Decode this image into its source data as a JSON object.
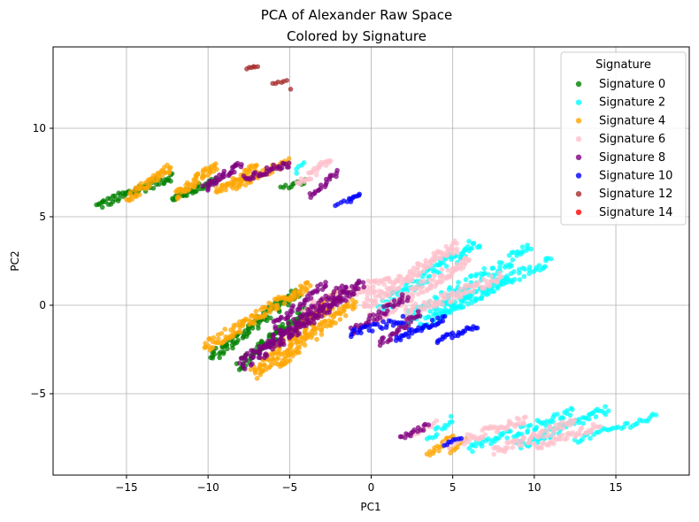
{
  "chart_data": {
    "type": "scatter",
    "title": [
      "PCA of Alexander Raw Space",
      "Colored by Signature"
    ],
    "xlabel": "PC1",
    "ylabel": "PC2",
    "xlim": [
      -19.5,
      19.5
    ],
    "ylim": [
      -9.6,
      14.6
    ],
    "xticks": [
      -15,
      -10,
      -5,
      0,
      5,
      10,
      15
    ],
    "yticks": [
      -5,
      0,
      5,
      10
    ],
    "grid": true,
    "legend": {
      "title": "Signature",
      "placement": "top-right"
    },
    "series": [
      {
        "name": "Signature 0",
        "color": "#008000",
        "clusters": [
          {
            "from": [
              -16.8,
              5.6
            ],
            "to": [
              -12.2,
              7.3
            ],
            "width": 0.25,
            "n": 60
          },
          {
            "from": [
              -12.2,
              6.0
            ],
            "to": [
              -9.5,
              7.1
            ],
            "width": 0.2,
            "n": 40
          },
          {
            "from": [
              -9.8,
              -3.0
            ],
            "to": [
              -4.5,
              0.8
            ],
            "width": 0.3,
            "n": 90
          },
          {
            "from": [
              -8.2,
              -3.5
            ],
            "to": [
              -3.8,
              -0.2
            ],
            "width": 0.3,
            "n": 80
          },
          {
            "from": [
              -5.5,
              6.6
            ],
            "to": [
              -4.0,
              7.0
            ],
            "width": 0.15,
            "n": 12
          }
        ]
      },
      {
        "name": "Signature 2",
        "color": "#00FFFF",
        "clusters": [
          {
            "from": [
              0.5,
              -0.2
            ],
            "to": [
              6.5,
              3.6
            ],
            "width": 0.35,
            "n": 90
          },
          {
            "from": [
              2.0,
              -0.8
            ],
            "to": [
              9.8,
              3.2
            ],
            "width": 0.35,
            "n": 90
          },
          {
            "from": [
              4.0,
              -0.5
            ],
            "to": [
              11.0,
              2.6
            ],
            "width": 0.3,
            "n": 70
          },
          {
            "from": [
              3.0,
              -1.2
            ],
            "to": [
              8.5,
              1.6
            ],
            "width": 0.3,
            "n": 60
          },
          {
            "from": [
              6.0,
              -8.1
            ],
            "to": [
              12.4,
              -6.0
            ],
            "width": 0.25,
            "n": 60
          },
          {
            "from": [
              9.0,
              -8.0
            ],
            "to": [
              14.5,
              -5.9
            ],
            "width": 0.25,
            "n": 60
          },
          {
            "from": [
              12.5,
              -7.6
            ],
            "to": [
              17.5,
              -6.3
            ],
            "width": 0.2,
            "n": 35
          },
          {
            "from": [
              3.5,
              -7.6
            ],
            "to": [
              5.0,
              -6.4
            ],
            "width": 0.2,
            "n": 14
          },
          {
            "from": [
              -4.6,
              7.5
            ],
            "to": [
              -4.2,
              8.1
            ],
            "width": 0.1,
            "n": 5
          }
        ]
      },
      {
        "name": "Signature 4",
        "color": "#FFA500",
        "clusters": [
          {
            "from": [
              -15.0,
              6.0
            ],
            "to": [
              -12.3,
              7.8
            ],
            "width": 0.25,
            "n": 50
          },
          {
            "from": [
              -12.0,
              6.2
            ],
            "to": [
              -9.5,
              7.9
            ],
            "width": 0.25,
            "n": 50
          },
          {
            "from": [
              -9.5,
              6.4
            ],
            "to": [
              -7.0,
              7.9
            ],
            "width": 0.2,
            "n": 40
          },
          {
            "from": [
              -8.5,
              6.6
            ],
            "to": [
              -5.0,
              8.2
            ],
            "width": 0.2,
            "n": 40
          },
          {
            "from": [
              -10.2,
              -2.4
            ],
            "to": [
              -3.8,
              1.2
            ],
            "width": 0.3,
            "n": 110
          },
          {
            "from": [
              -7.2,
              -3.9
            ],
            "to": [
              -2.0,
              0.6
            ],
            "width": 0.35,
            "n": 130
          },
          {
            "from": [
              -5.8,
              -3.4
            ],
            "to": [
              -1.0,
              0.2
            ],
            "width": 0.3,
            "n": 90
          },
          {
            "from": [
              3.5,
              -8.5
            ],
            "to": [
              5.0,
              -7.4
            ],
            "width": 0.15,
            "n": 18
          },
          {
            "from": [
              4.8,
              -8.3
            ],
            "to": [
              5.8,
              -7.5
            ],
            "width": 0.12,
            "n": 10
          }
        ]
      },
      {
        "name": "Signature 6",
        "color": "#FFC0CB",
        "clusters": [
          {
            "from": [
              -4.5,
              6.8
            ],
            "to": [
              -2.5,
              8.2
            ],
            "width": 0.2,
            "n": 30
          },
          {
            "from": [
              -4.2,
              -0.3
            ],
            "to": [
              1.2,
              1.5
            ],
            "width": 0.3,
            "n": 70
          },
          {
            "from": [
              -0.5,
              0.0
            ],
            "to": [
              5.3,
              3.4
            ],
            "width": 0.35,
            "n": 110
          },
          {
            "from": [
              0.0,
              -0.8
            ],
            "to": [
              6.0,
              2.6
            ],
            "width": 0.35,
            "n": 100
          },
          {
            "from": [
              2.0,
              -0.5
            ],
            "to": [
              8.0,
              1.6
            ],
            "width": 0.3,
            "n": 80
          },
          {
            "from": [
              4.5,
              -8.0
            ],
            "to": [
              9.5,
              -6.4
            ],
            "width": 0.25,
            "n": 60
          },
          {
            "from": [
              7.5,
              -8.3
            ],
            "to": [
              12.5,
              -6.6
            ],
            "width": 0.25,
            "n": 60
          },
          {
            "from": [
              10.0,
              -8.0
            ],
            "to": [
              14.0,
              -6.8
            ],
            "width": 0.2,
            "n": 40
          },
          {
            "from": [
              2.5,
              -7.3
            ],
            "to": [
              4.0,
              -6.6
            ],
            "width": 0.12,
            "n": 10
          }
        ]
      },
      {
        "name": "Signature 8",
        "color": "#800080",
        "clusters": [
          {
            "from": [
              -10.2,
              6.6
            ],
            "to": [
              -8.0,
              8.0
            ],
            "width": 0.2,
            "n": 35
          },
          {
            "from": [
              -7.8,
              7.2
            ],
            "to": [
              -5.0,
              8.0
            ],
            "width": 0.2,
            "n": 35
          },
          {
            "from": [
              -3.8,
              6.2
            ],
            "to": [
              -2.0,
              7.5
            ],
            "width": 0.15,
            "n": 20
          },
          {
            "from": [
              -8.0,
              -3.4
            ],
            "to": [
              -1.5,
              1.0
            ],
            "width": 0.35,
            "n": 120
          },
          {
            "from": [
              -6.8,
              -2.8
            ],
            "to": [
              -0.5,
              1.3
            ],
            "width": 0.3,
            "n": 100
          },
          {
            "from": [
              -6.0,
              -1.2
            ],
            "to": [
              -2.8,
              1.3
            ],
            "width": 0.2,
            "n": 40
          },
          {
            "from": [
              -1.2,
              -1.5
            ],
            "to": [
              2.2,
              0.5
            ],
            "width": 0.25,
            "n": 40
          },
          {
            "from": [
              0.5,
              -2.2
            ],
            "to": [
              3.0,
              -0.5
            ],
            "width": 0.2,
            "n": 30
          },
          {
            "from": [
              1.8,
              -7.5
            ],
            "to": [
              3.5,
              -6.8
            ],
            "width": 0.15,
            "n": 16
          }
        ]
      },
      {
        "name": "Signature 10",
        "color": "#0000FF",
        "clusters": [
          {
            "from": [
              -1.3,
              5.9
            ],
            "to": [
              -0.7,
              6.3
            ],
            "width": 0.08,
            "n": 8
          },
          {
            "from": [
              -2.2,
              5.6
            ],
            "to": [
              -1.3,
              6.0
            ],
            "width": 0.08,
            "n": 6
          },
          {
            "from": [
              -1.3,
              -1.6
            ],
            "to": [
              2.0,
              -0.8
            ],
            "width": 0.2,
            "n": 30
          },
          {
            "from": [
              1.5,
              -1.9
            ],
            "to": [
              4.5,
              -0.7
            ],
            "width": 0.2,
            "n": 35
          },
          {
            "from": [
              4.0,
              -2.0
            ],
            "to": [
              6.5,
              -1.2
            ],
            "width": 0.15,
            "n": 25
          },
          {
            "from": [
              4.5,
              -7.9
            ],
            "to": [
              5.5,
              -7.5
            ],
            "width": 0.08,
            "n": 8
          }
        ]
      },
      {
        "name": "Signature 12",
        "color": "#A52A2A",
        "clusters": [
          {
            "from": [
              -7.6,
              13.4
            ],
            "to": [
              -7.0,
              13.5
            ],
            "width": 0.05,
            "n": 6
          },
          {
            "from": [
              -6.0,
              12.5
            ],
            "to": [
              -5.2,
              12.7
            ],
            "width": 0.05,
            "n": 6
          },
          {
            "from": [
              -5.0,
              12.2
            ],
            "to": [
              -4.8,
              12.2
            ],
            "width": 0.02,
            "n": 1
          }
        ]
      },
      {
        "name": "Signature 14",
        "color": "#FF0000",
        "clusters": []
      }
    ]
  }
}
